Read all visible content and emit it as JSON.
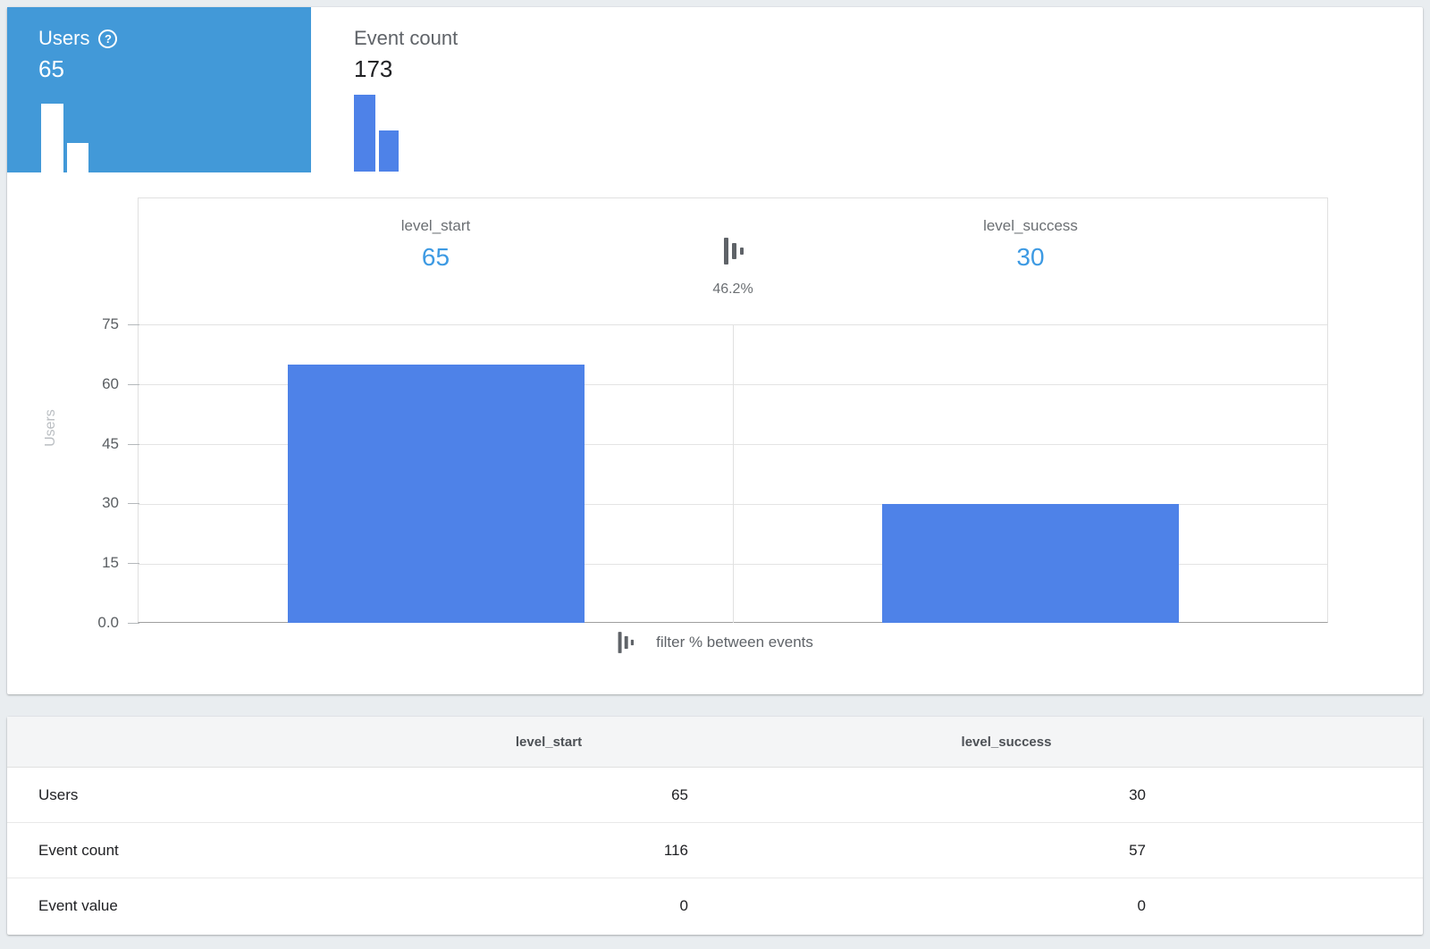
{
  "cards": {
    "users": {
      "label": "Users",
      "value": "65",
      "help_glyph": "?"
    },
    "event_count": {
      "label": "Event count",
      "value": "173"
    }
  },
  "funnel": {
    "steps": [
      {
        "name": "level_start",
        "users": "65"
      },
      {
        "name": "level_success",
        "users": "30"
      }
    ],
    "conversion_rate": "46.2%",
    "filter_note": "filter % between events"
  },
  "chart_data": {
    "type": "bar",
    "categories": [
      "level_start",
      "level_success"
    ],
    "series": [
      {
        "name": "Users",
        "values": [
          65,
          30
        ]
      }
    ],
    "title": "",
    "xlabel": "",
    "ylabel": "Users",
    "ylim": [
      0,
      75
    ],
    "yticks": [
      "75",
      "60",
      "45",
      "30",
      "15",
      "0.0"
    ],
    "grid": true,
    "legend": false,
    "conversion_between_bars": "46.2%"
  },
  "table": {
    "columns": [
      "level_start",
      "level_success"
    ],
    "rows": [
      {
        "label": "Users",
        "values": [
          "65",
          "30"
        ]
      },
      {
        "label": "Event count",
        "values": [
          "116",
          "57"
        ]
      },
      {
        "label": "Event value",
        "values": [
          "0",
          "0"
        ]
      }
    ]
  },
  "colors": {
    "selected_card_bg": "#4299d8",
    "bar_fill": "#4e82e8",
    "metric_blue_text": "#3d9ae3",
    "page_bg": "#e9edf0"
  }
}
